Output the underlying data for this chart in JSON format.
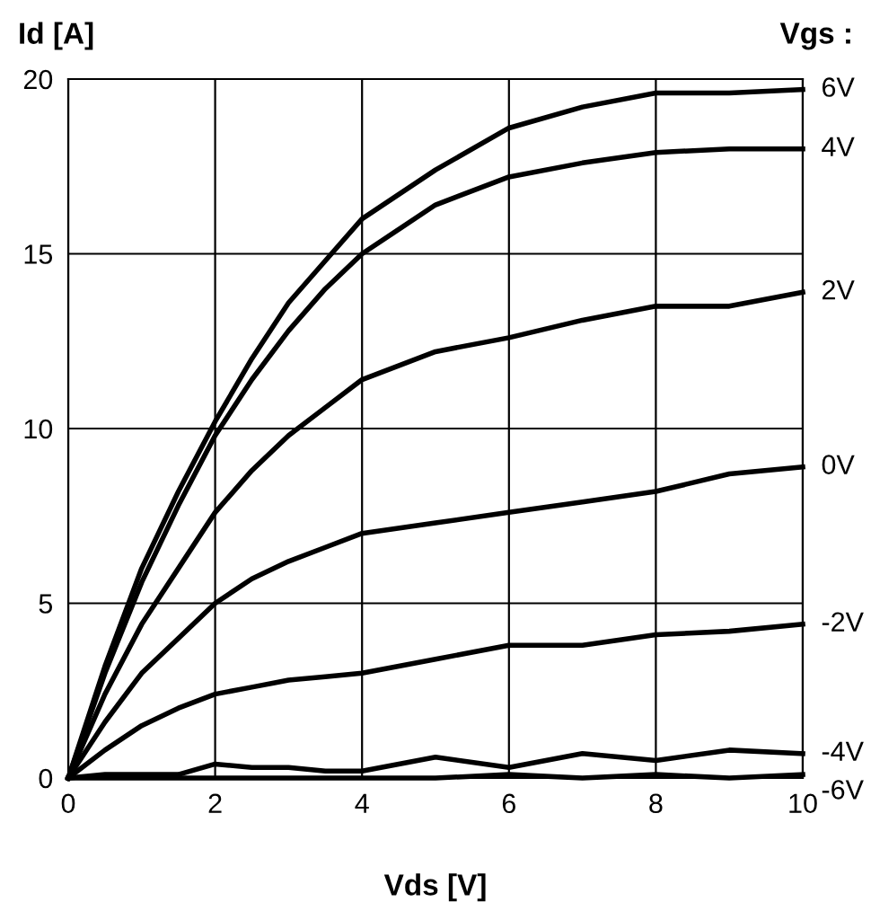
{
  "chart_data": {
    "type": "line",
    "xlabel": "Vds [V]",
    "ylabel": "Id [A]",
    "legend_title": "Vgs :",
    "x": [
      0,
      0.5,
      1,
      1.5,
      2,
      2.5,
      3,
      3.5,
      4,
      5,
      6,
      7,
      8,
      9,
      10
    ],
    "xlim": [
      0,
      10
    ],
    "xticks": [
      0,
      2,
      4,
      6,
      8,
      10
    ],
    "ylim": [
      0,
      20
    ],
    "yticks": [
      0,
      5,
      10,
      15,
      20
    ],
    "grid": true,
    "marker": "none",
    "line_style": "solid",
    "series": [
      {
        "name": "6V",
        "color": "#000000",
        "values": [
          0,
          3.2,
          6,
          8.2,
          10.2,
          12,
          13.6,
          14.8,
          16,
          17.4,
          18.6,
          19.2,
          19.6,
          19.6,
          19.7
        ]
      },
      {
        "name": "4V",
        "color": "#000000",
        "values": [
          0,
          3,
          5.6,
          7.8,
          9.8,
          11.4,
          12.8,
          14,
          15,
          16.4,
          17.2,
          17.6,
          17.9,
          18.0,
          18.0
        ]
      },
      {
        "name": "2V",
        "color": "#000000",
        "values": [
          0,
          2.4,
          4.4,
          6,
          7.6,
          8.8,
          9.8,
          10.6,
          11.4,
          12.2,
          12.6,
          13.1,
          13.5,
          13.5,
          13.9
        ]
      },
      {
        "name": "0V",
        "color": "#000000",
        "values": [
          0,
          1.6,
          3.0,
          4.0,
          5.0,
          5.7,
          6.2,
          6.6,
          7.0,
          7.3,
          7.6,
          7.9,
          8.2,
          8.7,
          8.9
        ]
      },
      {
        "name": "-2V",
        "color": "#000000",
        "values": [
          0,
          0.8,
          1.5,
          2.0,
          2.4,
          2.6,
          2.8,
          2.9,
          3.0,
          3.4,
          3.8,
          3.8,
          4.1,
          4.2,
          4.4
        ]
      },
      {
        "name": "-4V",
        "color": "#000000",
        "values": [
          0,
          0.1,
          0.1,
          0.1,
          0.4,
          0.3,
          0.3,
          0.2,
          0.2,
          0.6,
          0.3,
          0.7,
          0.5,
          0.8,
          0.7
        ]
      },
      {
        "name": "-6V",
        "color": "#000000",
        "values": [
          0,
          0,
          0,
          0,
          0,
          0,
          0,
          0,
          0,
          0,
          0.1,
          0,
          0.1,
          0,
          0.1
        ]
      }
    ]
  }
}
